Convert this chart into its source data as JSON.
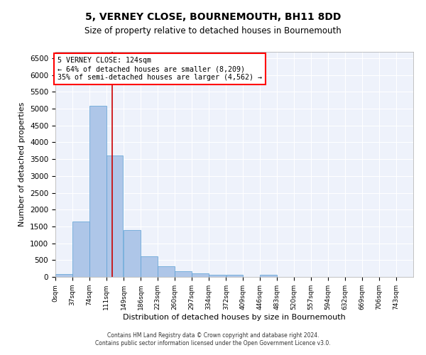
{
  "title": "5, VERNEY CLOSE, BOURNEMOUTH, BH11 8DD",
  "subtitle": "Size of property relative to detached houses in Bournemouth",
  "xlabel": "Distribution of detached houses by size in Bournemouth",
  "ylabel": "Number of detached properties",
  "footer_line1": "Contains HM Land Registry data © Crown copyright and database right 2024.",
  "footer_line2": "Contains public sector information licensed under the Open Government Licence v3.0.",
  "bar_color": "#aec6e8",
  "bar_edge_color": "#5a9fd4",
  "background_color": "#eef2fb",
  "grid_color": "#ffffff",
  "annotation_title": "5 VERNEY CLOSE: 124sqm",
  "annotation_line1": "← 64% of detached houses are smaller (8,209)",
  "annotation_line2": "35% of semi-detached houses are larger (4,562) →",
  "vline_x": 124,
  "vline_color": "#cc0000",
  "categories": [
    "0sqm",
    "37sqm",
    "74sqm",
    "111sqm",
    "149sqm",
    "186sqm",
    "223sqm",
    "260sqm",
    "297sqm",
    "334sqm",
    "372sqm",
    "409sqm",
    "446sqm",
    "483sqm",
    "520sqm",
    "557sqm",
    "594sqm",
    "632sqm",
    "669sqm",
    "706sqm",
    "743sqm"
  ],
  "bin_edges": [
    0,
    37,
    74,
    111,
    149,
    186,
    223,
    260,
    297,
    334,
    372,
    409,
    446,
    483,
    520,
    557,
    594,
    632,
    669,
    706,
    743,
    780
  ],
  "values": [
    75,
    1640,
    5090,
    3600,
    1400,
    620,
    310,
    160,
    110,
    60,
    70,
    0,
    60,
    0,
    0,
    0,
    0,
    0,
    0,
    0,
    0
  ],
  "ylim": [
    0,
    6700
  ],
  "yticks": [
    0,
    500,
    1000,
    1500,
    2000,
    2500,
    3000,
    3500,
    4000,
    4500,
    5000,
    5500,
    6000,
    6500
  ],
  "figsize": [
    6.0,
    5.0
  ],
  "dpi": 100
}
